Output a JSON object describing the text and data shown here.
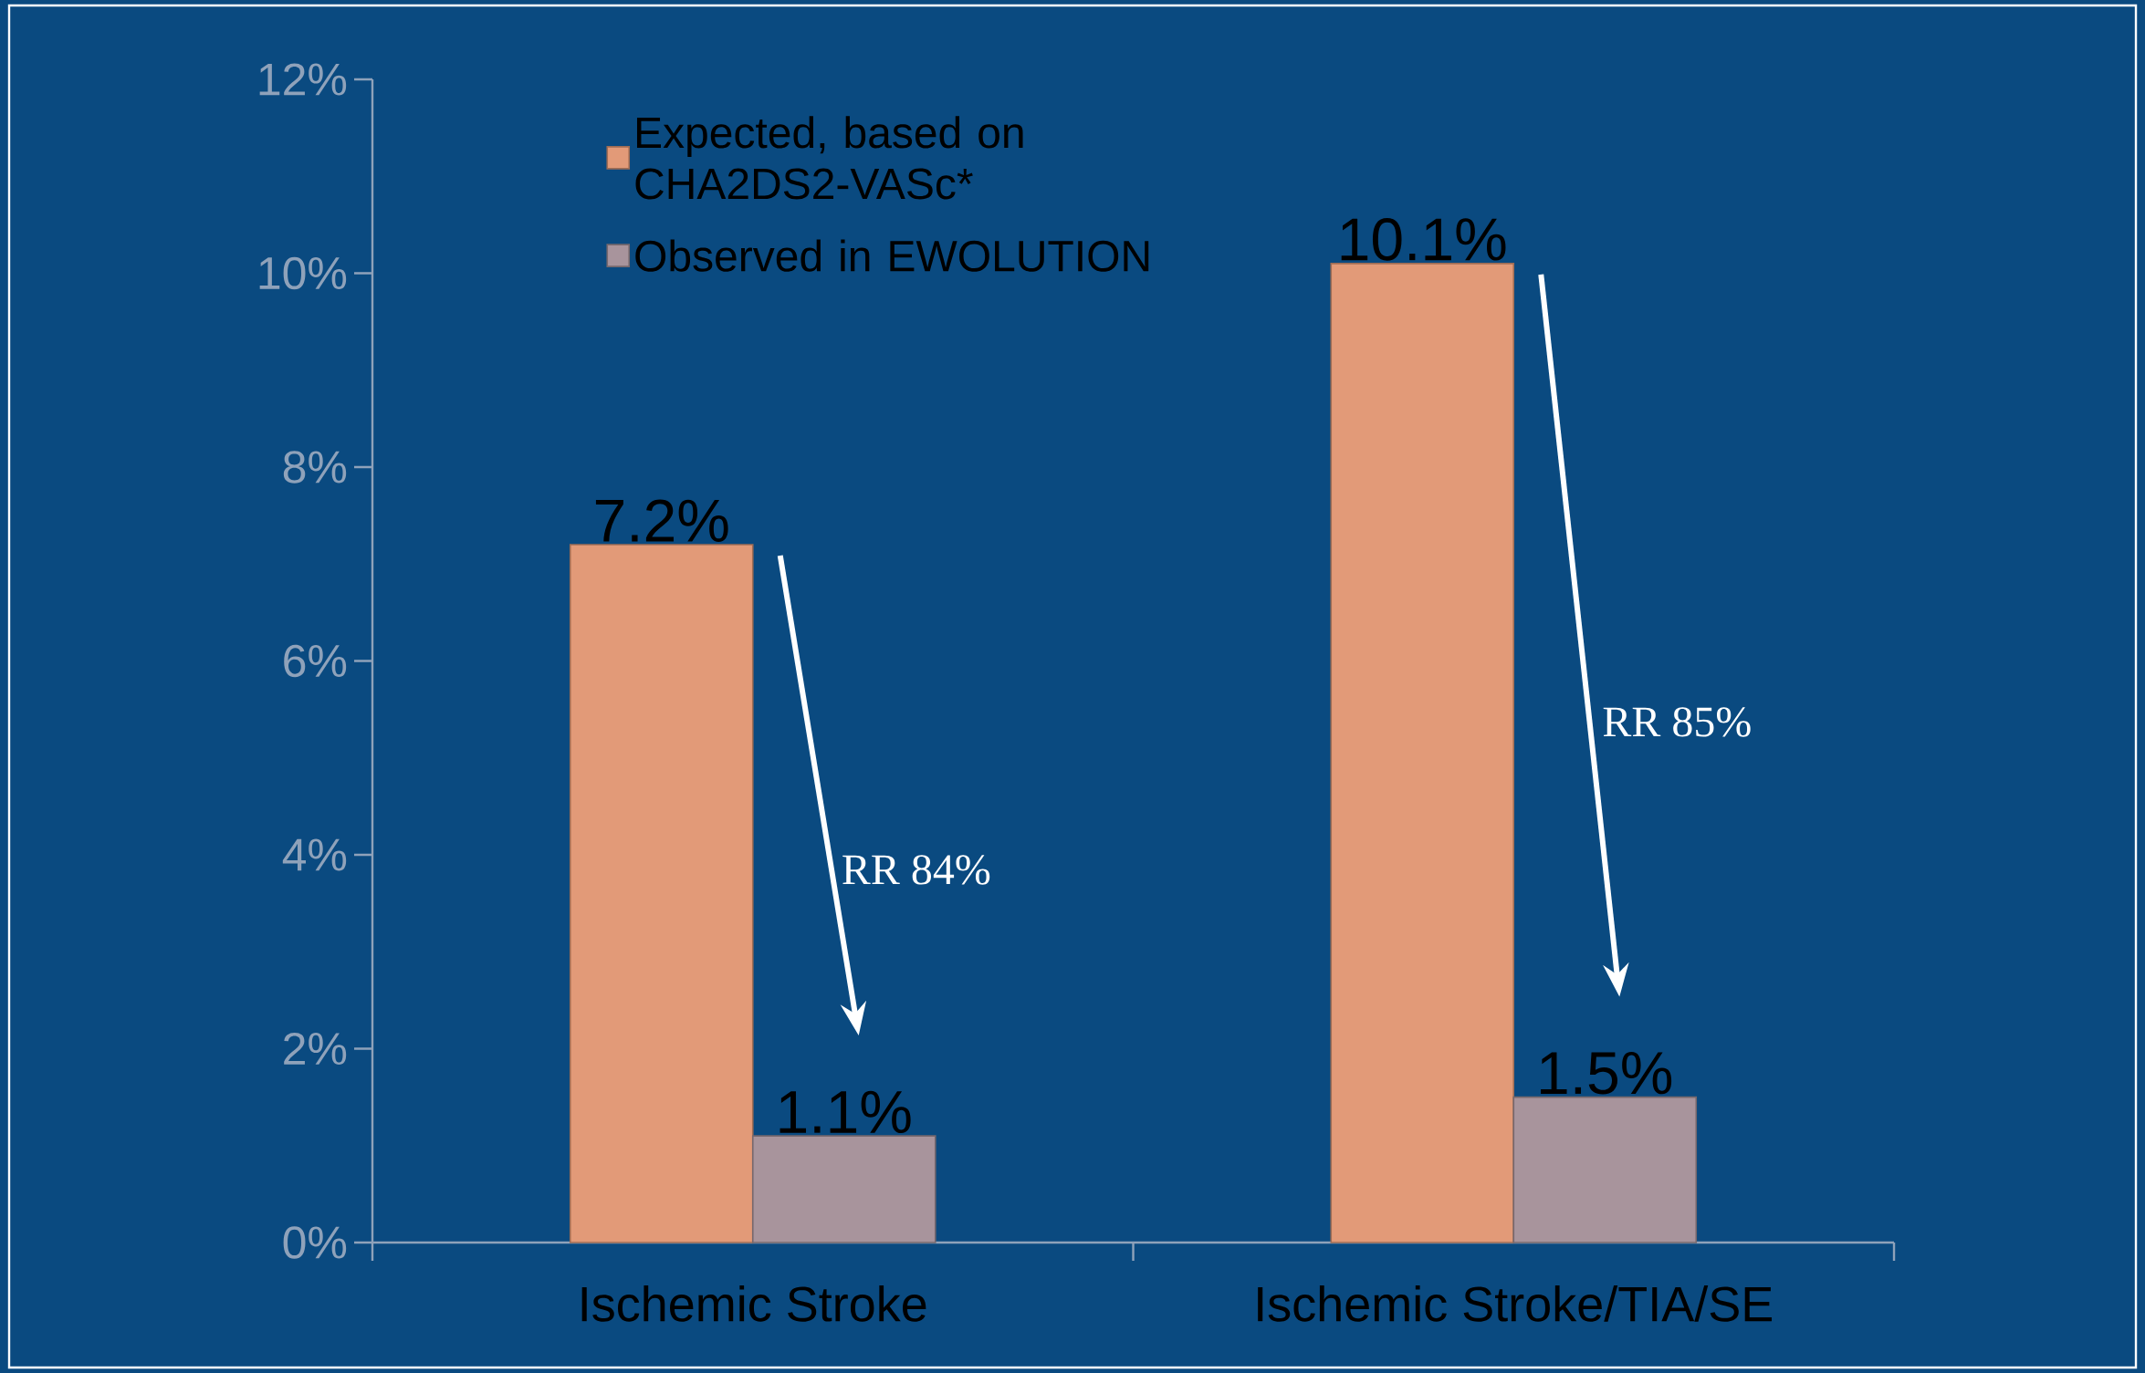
{
  "chart_data": {
    "type": "bar",
    "categories": [
      "Ischemic Stroke",
      "Ischemic Stroke/TIA/SE"
    ],
    "series": [
      {
        "name": "Expected, based on CHA2DS2-VASc*",
        "color": "#e29a78",
        "values": [
          7.2,
          10.1
        ],
        "value_labels": [
          "7.2%",
          "10.1%"
        ]
      },
      {
        "name": "Observed in EWOLUTION",
        "color": "#a8949c",
        "values": [
          1.1,
          1.5
        ],
        "value_labels": [
          "1.1%",
          "1.5%"
        ]
      }
    ],
    "ylim": [
      0,
      12
    ],
    "yticks": [
      {
        "value": 0,
        "label": "0%"
      },
      {
        "value": 2,
        "label": "2%"
      },
      {
        "value": 4,
        "label": "4%"
      },
      {
        "value": 6,
        "label": "6%"
      },
      {
        "value": 8,
        "label": "8%"
      },
      {
        "value": 10,
        "label": "10%"
      },
      {
        "value": 12,
        "label": "12%"
      }
    ],
    "annotations": [
      "RR 84%",
      "RR 85%"
    ],
    "legend": "top left",
    "grid": false
  }
}
